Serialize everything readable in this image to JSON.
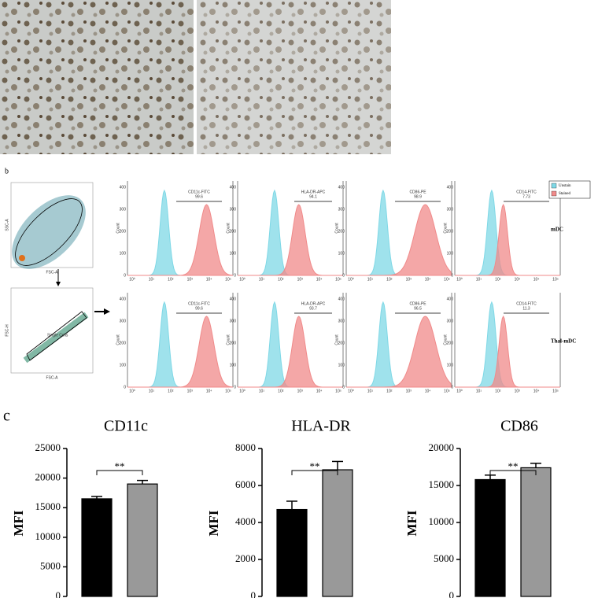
{
  "figure": {
    "panel_labels": [
      "b",
      "c"
    ],
    "gating": [
      {
        "x_label": "FSC-A",
        "y_label": "SSC-A"
      },
      {
        "x_label": "FSC-A",
        "y_label": "FSC-H",
        "gate": "Single Cells"
      }
    ],
    "histograms": {
      "y_label": "Count",
      "y_ticks": [
        0,
        100,
        200,
        300,
        400
      ],
      "x_ticks": [
        "10⁰",
        "10¹",
        "10²",
        "10³",
        "10⁴",
        "10⁵"
      ],
      "legend": [
        {
          "name": "Unstain",
          "color": "#7fd8e6"
        },
        {
          "name": "Stained",
          "color": "#f08a8a"
        }
      ],
      "rows": [
        {
          "label": "mDC",
          "gates": [
            {
              "marker": "CD11c-FITC",
              "value": 99.6
            },
            {
              "marker": "HLA-DR-APC",
              "value": 94.1
            },
            {
              "marker": "CD86-PE",
              "value": 98.9
            },
            {
              "marker": "CD14-FITC",
              "value": 7.73
            }
          ]
        },
        {
          "label": "Thal-mDC",
          "gates": [
            {
              "marker": "CD11c-FITC",
              "value": 99.6
            },
            {
              "marker": "HLA-DR-APC",
              "value": 93.7
            },
            {
              "marker": "CD86-PE",
              "value": 96.5
            },
            {
              "marker": "CD14-FITC",
              "value": 11.3
            }
          ]
        }
      ]
    }
  },
  "chart_data": [
    {
      "type": "bar",
      "title": "CD11c",
      "y_label": "MFI",
      "categories": [
        null,
        null
      ],
      "values": [
        16500,
        19000
      ],
      "errors": [
        400,
        600
      ],
      "colors": [
        "#000000",
        "#999999"
      ],
      "annotation": "**",
      "ylim": [
        0,
        25000
      ],
      "yticks": [
        0,
        5000,
        10000,
        15000,
        20000,
        25000
      ]
    },
    {
      "type": "bar",
      "title": "HLA-DR",
      "y_label": "MFI",
      "categories": [
        null,
        null
      ],
      "values": [
        4700,
        6850
      ],
      "errors": [
        450,
        450
      ],
      "colors": [
        "#000000",
        "#999999"
      ],
      "annotation": "**",
      "ylim": [
        0,
        8000
      ],
      "yticks": [
        0,
        2000,
        4000,
        6000,
        8000
      ]
    },
    {
      "type": "bar",
      "title": "CD86",
      "y_label": "MFI",
      "categories": [
        null,
        null
      ],
      "values": [
        15800,
        17400
      ],
      "errors": [
        600,
        600
      ],
      "colors": [
        "#000000",
        "#999999"
      ],
      "annotation": "**",
      "ylim": [
        0,
        20000
      ],
      "yticks": [
        0,
        5000,
        10000,
        15000,
        20000
      ]
    }
  ]
}
